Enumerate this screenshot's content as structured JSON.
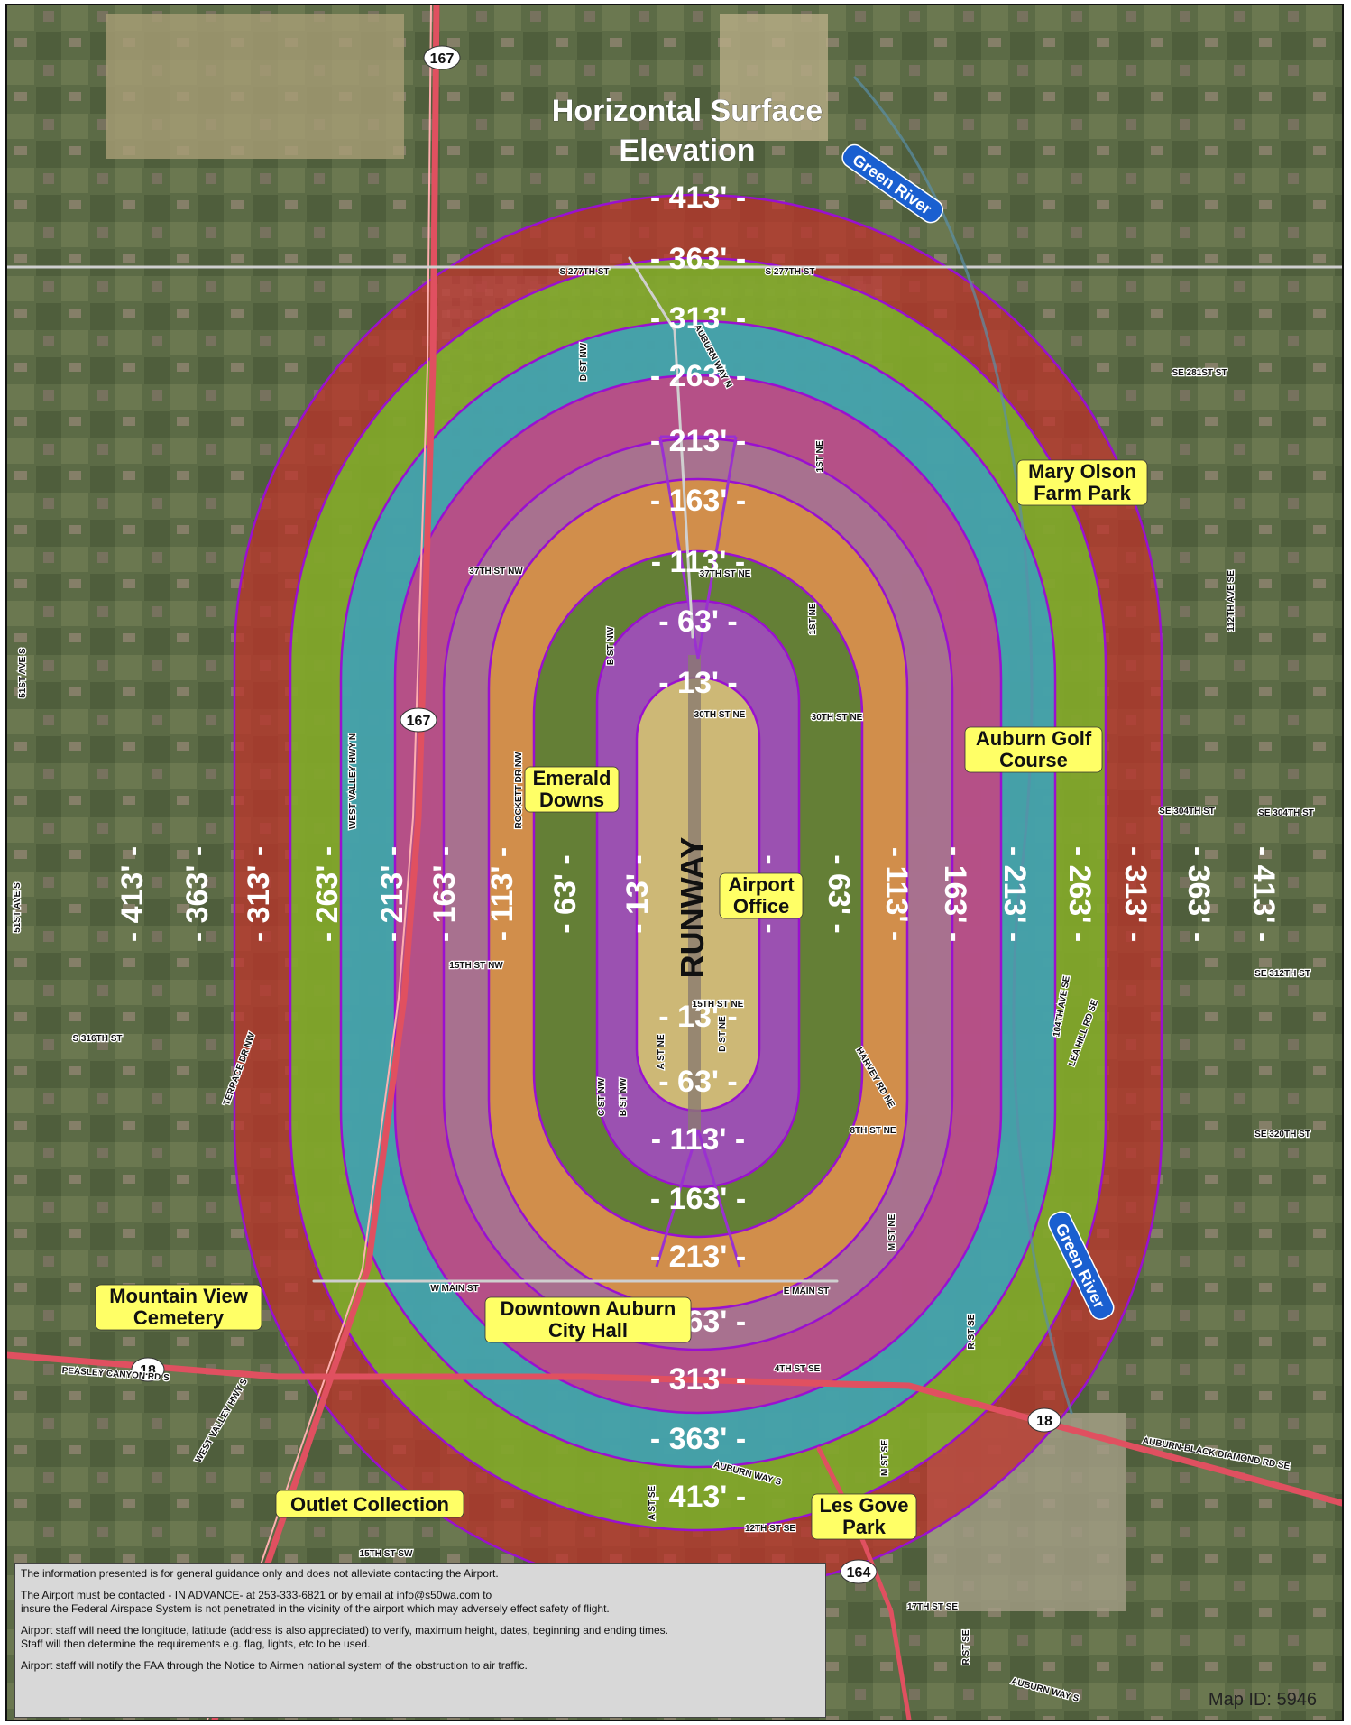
{
  "title_line1": "Horizontal Surface",
  "title_line2": "Elevation",
  "center_label": "RUNWAY",
  "ring_labels": [
    "13'",
    "63'",
    "113'",
    "163'",
    "213'",
    "263'",
    "313'",
    "363'",
    "413'"
  ],
  "ring_colors": [
    "#e0e060",
    "#b040e0",
    "#3a7a2e",
    "#e09a30",
    "#9a9a9a",
    "#e0307a",
    "#2fa0d8",
    "#70c92a",
    "#c0302a"
  ],
  "places": {
    "emerald_downs": [
      "Emerald",
      "Downs"
    ],
    "airport_office": [
      "Airport",
      "Office"
    ],
    "mary_olson": [
      "Mary Olson",
      "Farm Park"
    ],
    "auburn_golf": [
      "Auburn Golf",
      "Course"
    ],
    "mountain_view": [
      "Mountain View",
      "Cemetery"
    ],
    "downtown_auburn": [
      "Downtown Auburn",
      "City Hall"
    ],
    "outlet_collection": "Outlet Collection",
    "les_gove": [
      "Les Gove",
      "Park"
    ]
  },
  "water": {
    "green_river_north": "Green River",
    "green_river_south": "Green River"
  },
  "highways": {
    "sr167_a": "167",
    "sr167_b": "167",
    "sr18_a": "18",
    "sr18_b": "18",
    "sr164": "164"
  },
  "roads": {
    "s277": "S 277TH ST",
    "s277b": "S 277TH ST",
    "auburn_way_n": "AUBURN WAY N",
    "d_st_nw": "D ST NW",
    "first_st_ne": "1ST NE",
    "se281": "SE 281ST ST",
    "s37": "37TH ST NW",
    "s37ne": "37TH ST NE",
    "b_st_nw": "B ST NW",
    "first_st_ne2": "1ST NE",
    "s30ne": "30TH ST NE",
    "s30ne2": "30TH ST NE",
    "s112": "112TH AVE SE",
    "w_valley": "WEST VALLEY HWY N",
    "r_st_nw": "ROCKETT DR NW",
    "se304": "SE 304TH ST",
    "se304b": "SE 304TH ST",
    "s51": "51ST AVE S",
    "s51b": "51ST AVE S",
    "s15nw": "15TH ST NW",
    "se312": "SE 312TH ST",
    "s316": "S 316TH ST",
    "terrace": "TERRACE DR NW",
    "s15ne": "15TH ST NE",
    "d_st_ne": "D ST NE",
    "a_st_ne": "A ST NE",
    "harvey": "HARVEY RD NE",
    "lea_hill": "LEA HILL RD SE",
    "s104": "104TH AVE SE",
    "s8ne": "8TH ST NE",
    "se320": "SE 320TH ST",
    "c_st_nw": "C ST NW",
    "b_st_nw2": "B ST NW",
    "w_main": "W MAIN ST",
    "e_main": "E MAIN ST",
    "m_st_ne": "M ST NE",
    "r_st_se": "R ST SE",
    "s4se": "4TH ST SE",
    "peasley": "PEASLEY CANYON RD S",
    "w_valley_s": "WEST VALLEY HWY S",
    "auburn_way_s": "AUBURN WAY S",
    "black_diamond": "AUBURN-BLACK DIAMOND RD SE",
    "s12se": "12TH ST SE",
    "s15sw": "15TH ST SW",
    "a_st_se": "A ST SE",
    "m_st_se": "M ST SE",
    "s17se": "17TH ST SE",
    "r_st_se2": "R ST SE",
    "auburn_way_s2": "AUBURN WAY S"
  },
  "disclaimer": [
    "The information presented is for general guidance only and does not alleviate contacting the Airport.",
    "The Airport must be contacted  - IN ADVANCE- at  253-333-6821 or by email at info@s50wa.com to",
    "insure the Federal Airspace System is not penetrated in the vicinity of the airport which may adversely effect safety of flight.",
    "Airport staff will need the longitude, latitude (address is also appreciated) to verify, maximum height, dates, beginning and ending times.",
    "Staff will then determine the requirements e.g. flag, lights, etc to be used.",
    "Airport staff will notify  the FAA through the Notice to Airmen national system of the obstruction to air traffic."
  ],
  "map_id": "Map ID: 5946"
}
